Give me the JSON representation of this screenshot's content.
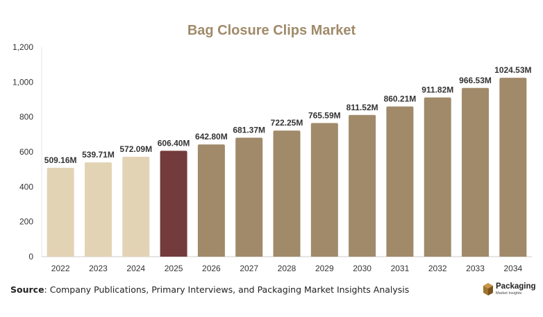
{
  "chart_data": {
    "type": "bar",
    "title": "Bag Closure Clips Market",
    "categories": [
      "2022",
      "2023",
      "2024",
      "2025",
      "2026",
      "2027",
      "2028",
      "2029",
      "2030",
      "2031",
      "2032",
      "2033",
      "2034"
    ],
    "values": [
      509.16,
      539.71,
      572.09,
      606.4,
      642.8,
      681.37,
      722.25,
      765.59,
      811.52,
      860.21,
      911.82,
      966.53,
      1024.53
    ],
    "data_labels": [
      "509.16M",
      "539.71M",
      "572.09M",
      "606.40M",
      "642.80M",
      "681.37M",
      "722.25M",
      "765.59M",
      "811.52M",
      "860.21M",
      "911.82M",
      "966.53M",
      "1024.53M"
    ],
    "ylim": [
      0,
      1200
    ],
    "yticks": [
      0,
      200,
      400,
      600,
      800,
      1000,
      1200
    ],
    "ytick_labels": [
      "0",
      "200",
      "400",
      "600",
      "800",
      "1,000",
      "1,200"
    ],
    "grid": false,
    "colors": {
      "historical": "#e3d3b5",
      "current": "#733b3b",
      "forecast": "#a08a6a"
    },
    "bar_color_groups": [
      "historical",
      "historical",
      "historical",
      "current",
      "forecast",
      "forecast",
      "forecast",
      "forecast",
      "forecast",
      "forecast",
      "forecast",
      "forecast",
      "forecast"
    ]
  },
  "footer": {
    "source_label": "Source",
    "source_text": ": Company Publications, Primary Interviews, and Packaging Market Insights Analysis"
  },
  "logo": {
    "name": "Packaging",
    "tagline": "Market Insights"
  }
}
